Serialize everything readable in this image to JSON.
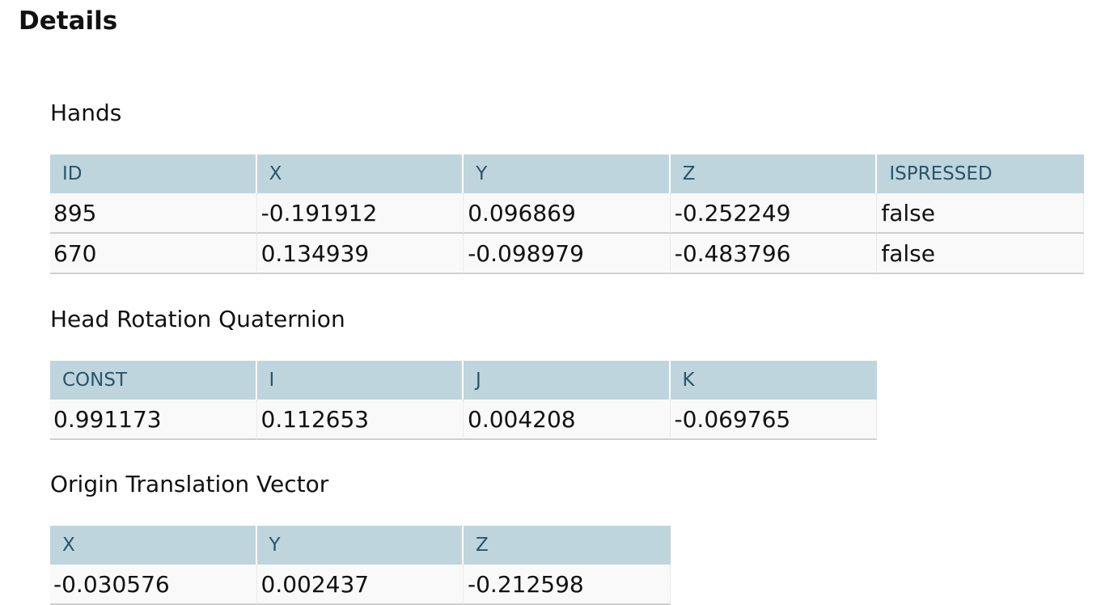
{
  "page_title": "Details",
  "hands": {
    "title": "Hands",
    "headers": [
      "ID",
      "X",
      "Y",
      "Z",
      "ISPRESSED"
    ],
    "rows": [
      [
        "895",
        "-0.191912",
        "0.096869",
        "-0.252249",
        "false"
      ],
      [
        "670",
        "0.134939",
        "-0.098979",
        "-0.483796",
        "false"
      ]
    ]
  },
  "head_rotation": {
    "title": "Head Rotation Quaternion",
    "headers": [
      "CONST",
      "I",
      "J",
      "K"
    ],
    "rows": [
      [
        "0.991173",
        "0.112653",
        "0.004208",
        "-0.069765"
      ]
    ]
  },
  "origin_translation": {
    "title": "Origin Translation Vector",
    "headers": [
      "X",
      "Y",
      "Z"
    ],
    "rows": [
      [
        "-0.030576",
        "0.002437",
        "-0.212598"
      ]
    ]
  }
}
